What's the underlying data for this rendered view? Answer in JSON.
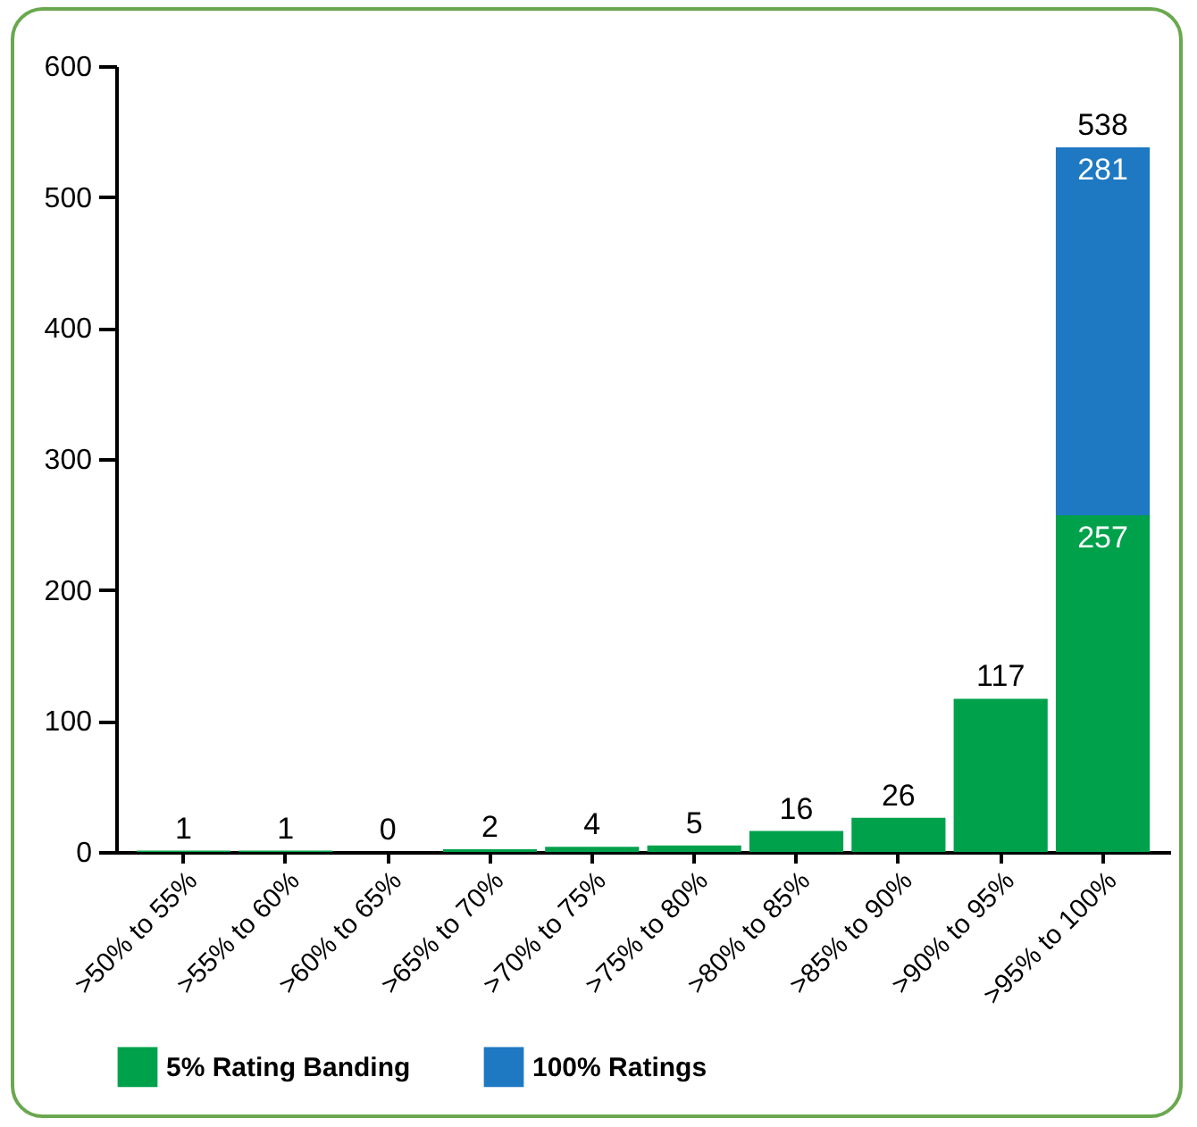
{
  "chart_data": {
    "type": "bar",
    "stacked": true,
    "categories": [
      ">50% to 55%",
      ">55% to 60%",
      ">60% to 65%",
      ">65% to 70%",
      ">70% to 75%",
      ">75% to 80%",
      ">80% to 85%",
      ">85% to 90%",
      ">90% to 95%",
      ">95% to 100%"
    ],
    "series": [
      {
        "name": "5% Rating Banding",
        "color": "#00a14b",
        "values": [
          1,
          1,
          0,
          2,
          4,
          5,
          16,
          26,
          117,
          257
        ]
      },
      {
        "name": "100% Ratings",
        "color": "#1e78c2",
        "values": [
          null,
          null,
          null,
          null,
          null,
          null,
          null,
          null,
          null,
          281
        ]
      }
    ],
    "data_labels": true,
    "totals": [
      null,
      null,
      null,
      null,
      null,
      null,
      null,
      null,
      null,
      "538"
    ],
    "ylim": [
      0,
      600
    ],
    "yticks": [
      0,
      100,
      200,
      300,
      400,
      500,
      600
    ],
    "grid": false,
    "legend": "bottom"
  }
}
